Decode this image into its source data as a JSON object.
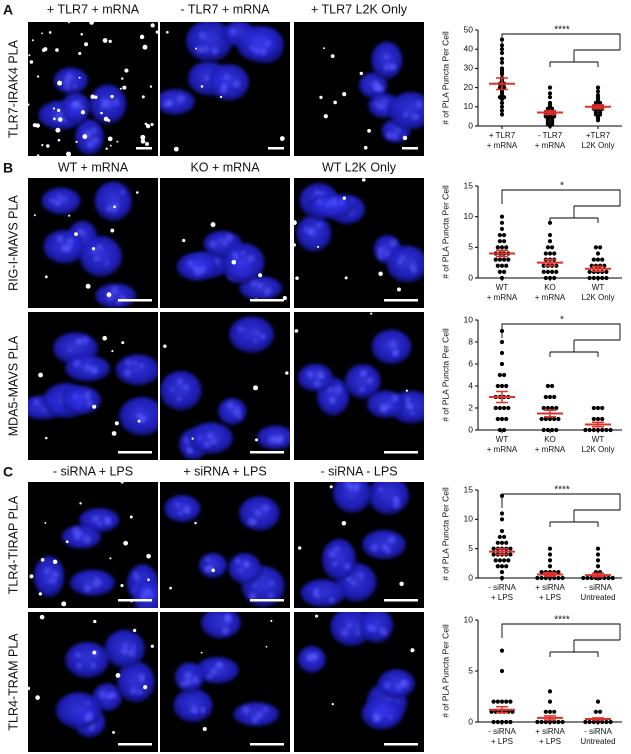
{
  "panels": [
    {
      "label": "A",
      "columns": [
        "+ TLR7 + mRNA",
        "- TLR7 + mRNA",
        "+ TLR7 L2K Only"
      ],
      "rows": [
        "TLR7-IRAK4 PLA"
      ]
    },
    {
      "label": "B",
      "columns": [
        "WT + mRNA",
        "KO + mRNA",
        "WT L2K Only"
      ],
      "rows": [
        "RIG-I-MAVS PLA",
        "MDA5-MAVS PLA"
      ]
    },
    {
      "label": "C",
      "columns": [
        "- siRNA + LPS",
        "+ siRNA + LPS",
        "- siRNA - LPS"
      ],
      "rows": [
        "TLR4-TIRAP PLA",
        "TLR4-TRAM PLA"
      ]
    }
  ],
  "chart_data": [
    {
      "type": "strip",
      "ylabel": "# of PLA Puncta Per Cell",
      "annotation": "****",
      "categories": [
        [
          "+ TLR7",
          "+ mRNA"
        ],
        [
          "- TLR7",
          "+ mRNA"
        ],
        [
          "+TLR7",
          "L2K Only"
        ]
      ],
      "series": [
        {
          "values": [
            45,
            42,
            40,
            38,
            35,
            33,
            30,
            29,
            28,
            27,
            25,
            24,
            23,
            22,
            22,
            21,
            20,
            20,
            19,
            18,
            17,
            16,
            15,
            15,
            14,
            12,
            10,
            8,
            6
          ]
        },
        {
          "values": [
            20,
            17,
            15,
            12,
            11,
            10,
            9,
            9,
            8,
            8,
            7,
            7,
            7,
            6,
            6,
            6,
            5,
            5,
            5,
            4,
            4,
            3,
            3,
            2,
            2,
            1,
            1,
            0
          ]
        },
        {
          "values": [
            20,
            18,
            16,
            15,
            14,
            13,
            12,
            12,
            11,
            11,
            10,
            10,
            10,
            9,
            9,
            9,
            8,
            8,
            7,
            7,
            6,
            6,
            5,
            4,
            3
          ]
        }
      ],
      "means": [
        22,
        7,
        10
      ],
      "errors": [
        3,
        1,
        1
      ],
      "color": "#000000",
      "summary_color": "#e0302a",
      "ylim": [
        0,
        50
      ],
      "yticks": [
        0,
        10,
        20,
        30,
        40,
        50
      ]
    },
    {
      "type": "strip",
      "ylabel": "# of PLA Puncta Per Cell",
      "annotation": "*",
      "categories": [
        [
          "WT",
          "+ mRNA"
        ],
        [
          "KO",
          "+ mRNA"
        ],
        [
          "WT",
          "L2K Only"
        ]
      ],
      "series": [
        {
          "values": [
            10,
            9,
            8,
            7,
            7,
            6,
            6,
            5,
            5,
            5,
            4,
            4,
            4,
            4,
            3,
            3,
            3,
            3,
            2,
            2,
            2,
            1,
            1,
            0
          ]
        },
        {
          "values": [
            9,
            7,
            6,
            5,
            5,
            4,
            4,
            4,
            3,
            3,
            3,
            2,
            2,
            2,
            2,
            1,
            1,
            1,
            1,
            0,
            0,
            0
          ]
        },
        {
          "values": [
            5,
            5,
            4,
            3,
            3,
            3,
            2,
            2,
            2,
            2,
            1,
            1,
            1,
            1,
            1,
            0,
            0,
            0,
            0,
            0
          ]
        }
      ],
      "means": [
        4,
        2.5,
        1.5
      ],
      "errors": [
        0.5,
        0.5,
        0.4
      ],
      "color": "#000000",
      "summary_color": "#e0302a",
      "ylim": [
        0,
        15
      ],
      "yticks": [
        0,
        5,
        10,
        15
      ]
    },
    {
      "type": "strip",
      "ylabel": "# of PLA Puncta Per Cell",
      "annotation": "*",
      "categories": [
        [
          "WT",
          "+ mRNA"
        ],
        [
          "KO",
          "+ mRNA"
        ],
        [
          "WT",
          "L2K Only"
        ]
      ],
      "series": [
        {
          "values": [
            9,
            8,
            7,
            6,
            5,
            5,
            4,
            4,
            4,
            3,
            3,
            3,
            3,
            2,
            2,
            2,
            2,
            1,
            1,
            1,
            0,
            0
          ]
        },
        {
          "values": [
            4,
            4,
            3,
            3,
            3,
            2,
            2,
            2,
            2,
            1,
            1,
            1,
            1,
            1,
            0,
            0,
            0,
            0
          ]
        },
        {
          "values": [
            2,
            2,
            2,
            1,
            1,
            1,
            0,
            0,
            0,
            0,
            0,
            0,
            0
          ]
        }
      ],
      "means": [
        3,
        1.5,
        0.5
      ],
      "errors": [
        0.5,
        0.3,
        0.2
      ],
      "color": "#000000",
      "summary_color": "#e0302a",
      "ylim": [
        0,
        10
      ],
      "yticks": [
        0,
        2,
        4,
        6,
        8,
        10
      ]
    },
    {
      "type": "strip",
      "ylabel": "# of PLA Puncta Per Cell",
      "annotation": "****",
      "categories": [
        [
          "- siRNA",
          "+ LPS"
        ],
        [
          "+ siRNA",
          "+ LPS"
        ],
        [
          "- siRNA",
          "Untreated"
        ]
      ],
      "series": [
        {
          "values": [
            14,
            11,
            10,
            8,
            7,
            7,
            6,
            6,
            6,
            5,
            5,
            5,
            5,
            5,
            4,
            4,
            4,
            4,
            4,
            3,
            3,
            3,
            3,
            2,
            2,
            2,
            1,
            0
          ]
        },
        {
          "values": [
            5,
            4,
            3,
            2,
            1,
            1,
            1,
            1,
            1,
            0,
            0,
            0,
            0,
            0,
            0,
            0
          ]
        },
        {
          "values": [
            5,
            4,
            3,
            2,
            1,
            1,
            0,
            0,
            0,
            0,
            0,
            0,
            0,
            0
          ]
        }
      ],
      "means": [
        4.5,
        0.6,
        0.5
      ],
      "errors": [
        0.5,
        0.3,
        0.3
      ],
      "color": "#000000",
      "summary_color": "#e0302a",
      "ylim": [
        0,
        15
      ],
      "yticks": [
        0,
        5,
        10,
        15
      ]
    },
    {
      "type": "strip",
      "ylabel": "# of PLA Puncta Per Cell",
      "annotation": "****",
      "categories": [
        [
          "- siRNA",
          "+ LPS"
        ],
        [
          "+ siRNA",
          "+ LPS"
        ],
        [
          "- siRNA",
          "Untreated"
        ]
      ],
      "series": [
        {
          "values": [
            7,
            5,
            2,
            2,
            2,
            2,
            2,
            1,
            1,
            1,
            1,
            1,
            1,
            0,
            0,
            0,
            0,
            0
          ]
        },
        {
          "values": [
            3,
            2,
            1,
            1,
            1,
            0,
            0,
            0,
            0,
            0,
            0,
            0
          ]
        },
        {
          "values": [
            2,
            1,
            1,
            0,
            0,
            0,
            0,
            0,
            0,
            0
          ]
        }
      ],
      "means": [
        1.2,
        0.4,
        0.3
      ],
      "errors": [
        0.3,
        0.2,
        0.1
      ],
      "color": "#000000",
      "summary_color": "#e0302a",
      "ylim": [
        0,
        10
      ],
      "yticks": [
        0,
        5,
        10
      ]
    }
  ]
}
